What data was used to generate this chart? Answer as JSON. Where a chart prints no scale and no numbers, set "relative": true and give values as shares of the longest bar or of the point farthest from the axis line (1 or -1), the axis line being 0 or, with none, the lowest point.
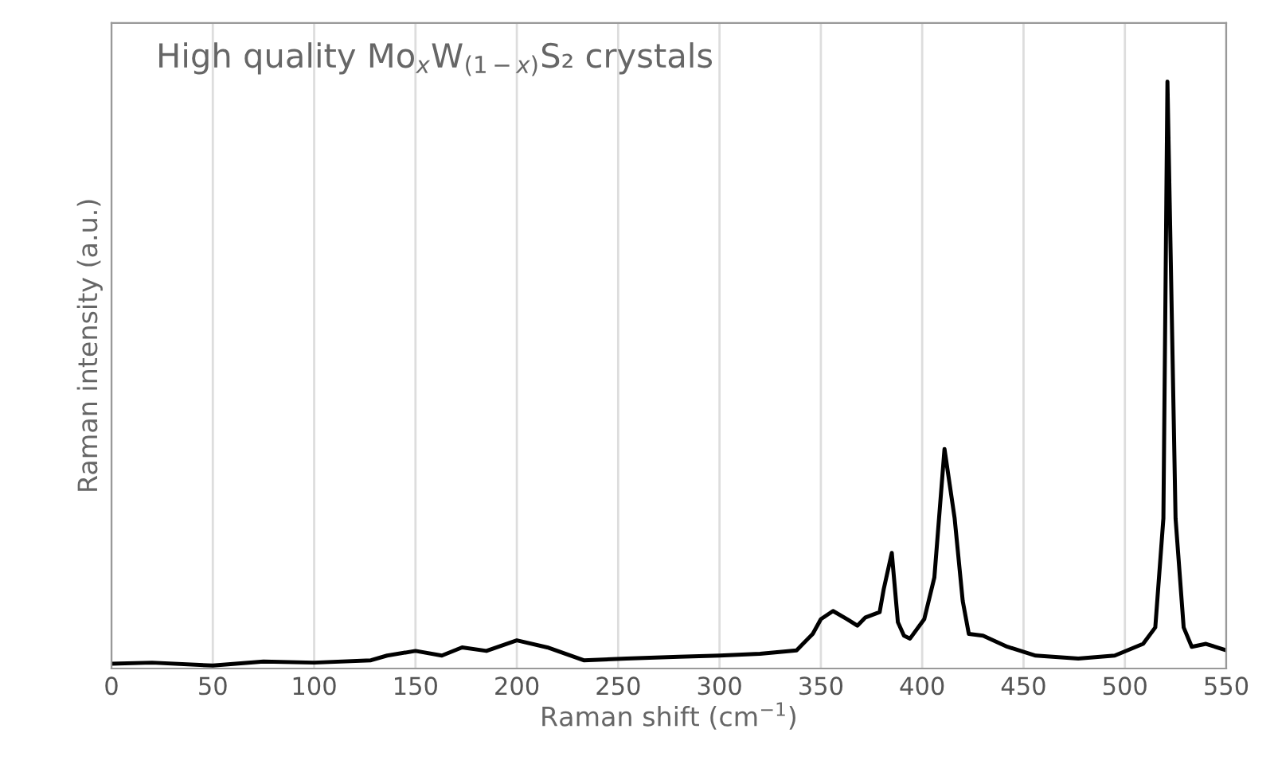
{
  "chart_data": {
    "type": "line",
    "title": "High quality Mo$_{x}$W$_{(1−x)}$S₂ crystals",
    "xlabel": "Raman shift (cm$^{−1}$)",
    "ylabel": "Raman intensity (a.u.)",
    "relative": true,
    "xlim": [
      0,
      550
    ],
    "xticks": [
      0,
      50,
      100,
      150,
      200,
      250,
      300,
      350,
      400,
      450,
      500,
      550
    ],
    "grid": "x",
    "marker": "none",
    "line_style": "solid",
    "series": [
      {
        "color": "#000000",
        "x": [
          0,
          20,
          50,
          75,
          100,
          128,
          136,
          150,
          163,
          173,
          185,
          200,
          215,
          233,
          254,
          280,
          300,
          320,
          338,
          346,
          350,
          356,
          363,
          368,
          372,
          379,
          381,
          385,
          388,
          391,
          394,
          401,
          406,
          411,
          416,
          420,
          423,
          430,
          442,
          456,
          477,
          495,
          509,
          515,
          519,
          521,
          525,
          529,
          533,
          540,
          550
        ],
        "values": [
          0.008,
          0.01,
          0.005,
          0.012,
          0.01,
          0.014,
          0.022,
          0.03,
          0.022,
          0.036,
          0.03,
          0.048,
          0.036,
          0.014,
          0.017,
          0.02,
          0.022,
          0.025,
          0.031,
          0.059,
          0.084,
          0.098,
          0.084,
          0.073,
          0.087,
          0.096,
          0.135,
          0.197,
          0.079,
          0.056,
          0.051,
          0.084,
          0.155,
          0.374,
          0.256,
          0.115,
          0.059,
          0.056,
          0.037,
          0.022,
          0.017,
          0.022,
          0.042,
          0.07,
          0.256,
          1.0,
          0.256,
          0.07,
          0.037,
          0.042,
          0.031
        ]
      }
    ]
  }
}
